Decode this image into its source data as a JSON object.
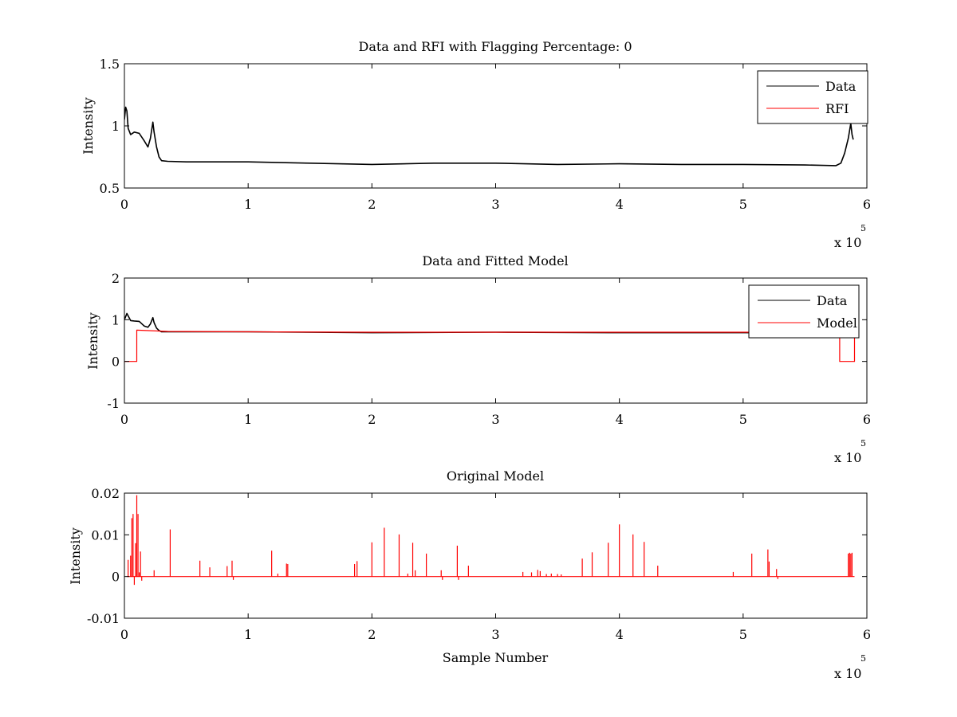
{
  "figure": {
    "background": "#ffffff",
    "data_color": "#000000",
    "model_color": "#ff0000"
  },
  "chart_data": [
    {
      "type": "line",
      "title": "Data and RFI with Flagging Percentage: 0",
      "xlabel": "",
      "ylabel": "Intensity",
      "xlim": [
        0,
        6
      ],
      "ylim": [
        0.5,
        1.5
      ],
      "x_multiplier": "x 10",
      "x_exponent": "5",
      "xticks": [
        "0",
        "1",
        "2",
        "3",
        "4",
        "5",
        "6"
      ],
      "yticks": [
        "0.5",
        "1",
        "1.5"
      ],
      "legend": {
        "position": "top-right",
        "entries": [
          "Data",
          "RFI"
        ]
      },
      "series": [
        {
          "name": "Data",
          "color": "#000000",
          "x": [
            0,
            0.01,
            0.02,
            0.03,
            0.05,
            0.08,
            0.12,
            0.16,
            0.19,
            0.21,
            0.23,
            0.24,
            0.26,
            0.28,
            0.3,
            0.35,
            0.5,
            1,
            1.5,
            2,
            2.5,
            3,
            3.5,
            4,
            4.5,
            5,
            5.5,
            5.75,
            5.79,
            5.82,
            5.85,
            5.87,
            5.88,
            5.89
          ],
          "y": [
            1.05,
            1.15,
            1.12,
            0.98,
            0.93,
            0.95,
            0.94,
            0.88,
            0.83,
            0.9,
            1.03,
            0.95,
            0.83,
            0.75,
            0.72,
            0.715,
            0.71,
            0.71,
            0.7,
            0.69,
            0.7,
            0.7,
            0.69,
            0.695,
            0.69,
            0.69,
            0.685,
            0.68,
            0.7,
            0.78,
            0.9,
            1.02,
            0.93,
            0.89
          ]
        },
        {
          "name": "RFI",
          "color": "#ff0000",
          "x": [],
          "y": []
        }
      ]
    },
    {
      "type": "line",
      "title": "Data and Fitted Model",
      "xlabel": "",
      "ylabel": "Intensity",
      "xlim": [
        0,
        6
      ],
      "ylim": [
        -1,
        2
      ],
      "x_multiplier": "x 10",
      "x_exponent": "5",
      "xticks": [
        "0",
        "1",
        "2",
        "3",
        "4",
        "5",
        "6"
      ],
      "yticks": [
        "-1",
        "0",
        "1",
        "2"
      ],
      "legend": {
        "position": "top-right",
        "entries": [
          "Data",
          "Model"
        ]
      },
      "series": [
        {
          "name": "Data",
          "color": "#000000",
          "x": [
            0,
            0.02,
            0.05,
            0.08,
            0.12,
            0.16,
            0.19,
            0.21,
            0.23,
            0.24,
            0.26,
            0.28,
            0.3,
            0.5,
            1,
            2,
            3,
            4,
            5,
            5.75,
            5.8,
            5.85,
            5.88,
            5.89
          ],
          "y": [
            1.0,
            1.15,
            0.98,
            0.97,
            0.96,
            0.85,
            0.82,
            0.9,
            1.05,
            0.93,
            0.8,
            0.74,
            0.71,
            0.71,
            0.71,
            0.69,
            0.7,
            0.69,
            0.69,
            0.68,
            0.75,
            0.9,
            1.0,
            0.88
          ]
        },
        {
          "name": "Model",
          "color": "#ff0000",
          "x": [
            0,
            0.1,
            0.1,
            0.35,
            1,
            2,
            3,
            4,
            5,
            5.6,
            5.78,
            5.78,
            5.9,
            5.9
          ],
          "y": [
            0,
            0,
            0.75,
            0.72,
            0.71,
            0.7,
            0.7,
            0.7,
            0.7,
            0.7,
            0.7,
            0,
            0,
            0.7
          ]
        }
      ]
    },
    {
      "type": "line",
      "title": "Original Model",
      "xlabel": "Sample Number",
      "ylabel": "Intensity",
      "xlim": [
        0,
        6
      ],
      "ylim": [
        -0.01,
        0.02
      ],
      "x_multiplier": "x 10",
      "x_exponent": "5",
      "xticks": [
        "0",
        "1",
        "2",
        "3",
        "4",
        "5",
        "6"
      ],
      "yticks": [
        "-0.01",
        "0",
        "0.01",
        "0.02"
      ],
      "legend": null,
      "series": [
        {
          "name": "",
          "color": "#ff0000",
          "spikes": [
            [
              0.03,
              0.004
            ],
            [
              0.05,
              0.005
            ],
            [
              0.06,
              0.014
            ],
            [
              0.07,
              0.015
            ],
            [
              0.08,
              -0.002
            ],
            [
              0.09,
              0.008
            ],
            [
              0.1,
              0.0195
            ],
            [
              0.11,
              0.015
            ],
            [
              0.12,
              0.001
            ],
            [
              0.13,
              0.006
            ],
            [
              0.14,
              -0.001
            ],
            [
              0.24,
              0.0015
            ],
            [
              0.37,
              0.0113
            ],
            [
              0.61,
              0.0038
            ],
            [
              0.69,
              0.0022
            ],
            [
              0.83,
              0.0025
            ],
            [
              0.87,
              0.0038
            ],
            [
              0.88,
              -0.0008
            ],
            [
              1.19,
              0.0062
            ],
            [
              1.24,
              0.0007
            ],
            [
              1.31,
              0.0031
            ],
            [
              1.32,
              0.003
            ],
            [
              1.86,
              0.003
            ],
            [
              1.88,
              0.0037
            ],
            [
              2.0,
              0.0082
            ],
            [
              2.1,
              0.0117
            ],
            [
              2.22,
              0.0101
            ],
            [
              2.29,
              0.0007
            ],
            [
              2.33,
              0.0081
            ],
            [
              2.35,
              0.0015
            ],
            [
              2.44,
              0.0055
            ],
            [
              2.56,
              0.0015
            ],
            [
              2.57,
              -0.0008
            ],
            [
              2.69,
              0.0074
            ],
            [
              2.7,
              -0.0008
            ],
            [
              2.78,
              0.0026
            ],
            [
              3.22,
              0.0011
            ],
            [
              3.29,
              0.001
            ],
            [
              3.34,
              0.0016
            ],
            [
              3.36,
              0.0013
            ],
            [
              3.41,
              0.0006
            ],
            [
              3.45,
              0.0007
            ],
            [
              3.5,
              0.0006
            ],
            [
              3.53,
              0.0005
            ],
            [
              3.7,
              0.0043
            ],
            [
              3.78,
              0.0058
            ],
            [
              3.91,
              0.0081
            ],
            [
              4.0,
              0.0125
            ],
            [
              4.11,
              0.0101
            ],
            [
              4.2,
              0.0083
            ],
            [
              4.31,
              0.0026
            ],
            [
              4.92,
              0.0011
            ],
            [
              5.07,
              0.0055
            ],
            [
              5.2,
              0.0065
            ],
            [
              5.21,
              0.0036
            ],
            [
              5.27,
              0.0018
            ],
            [
              5.28,
              -0.0006
            ],
            [
              5.85,
              0.0055
            ],
            [
              5.86,
              0.0057
            ],
            [
              5.87,
              0.0055
            ],
            [
              5.88,
              0.0057
            ]
          ]
        }
      ]
    }
  ]
}
